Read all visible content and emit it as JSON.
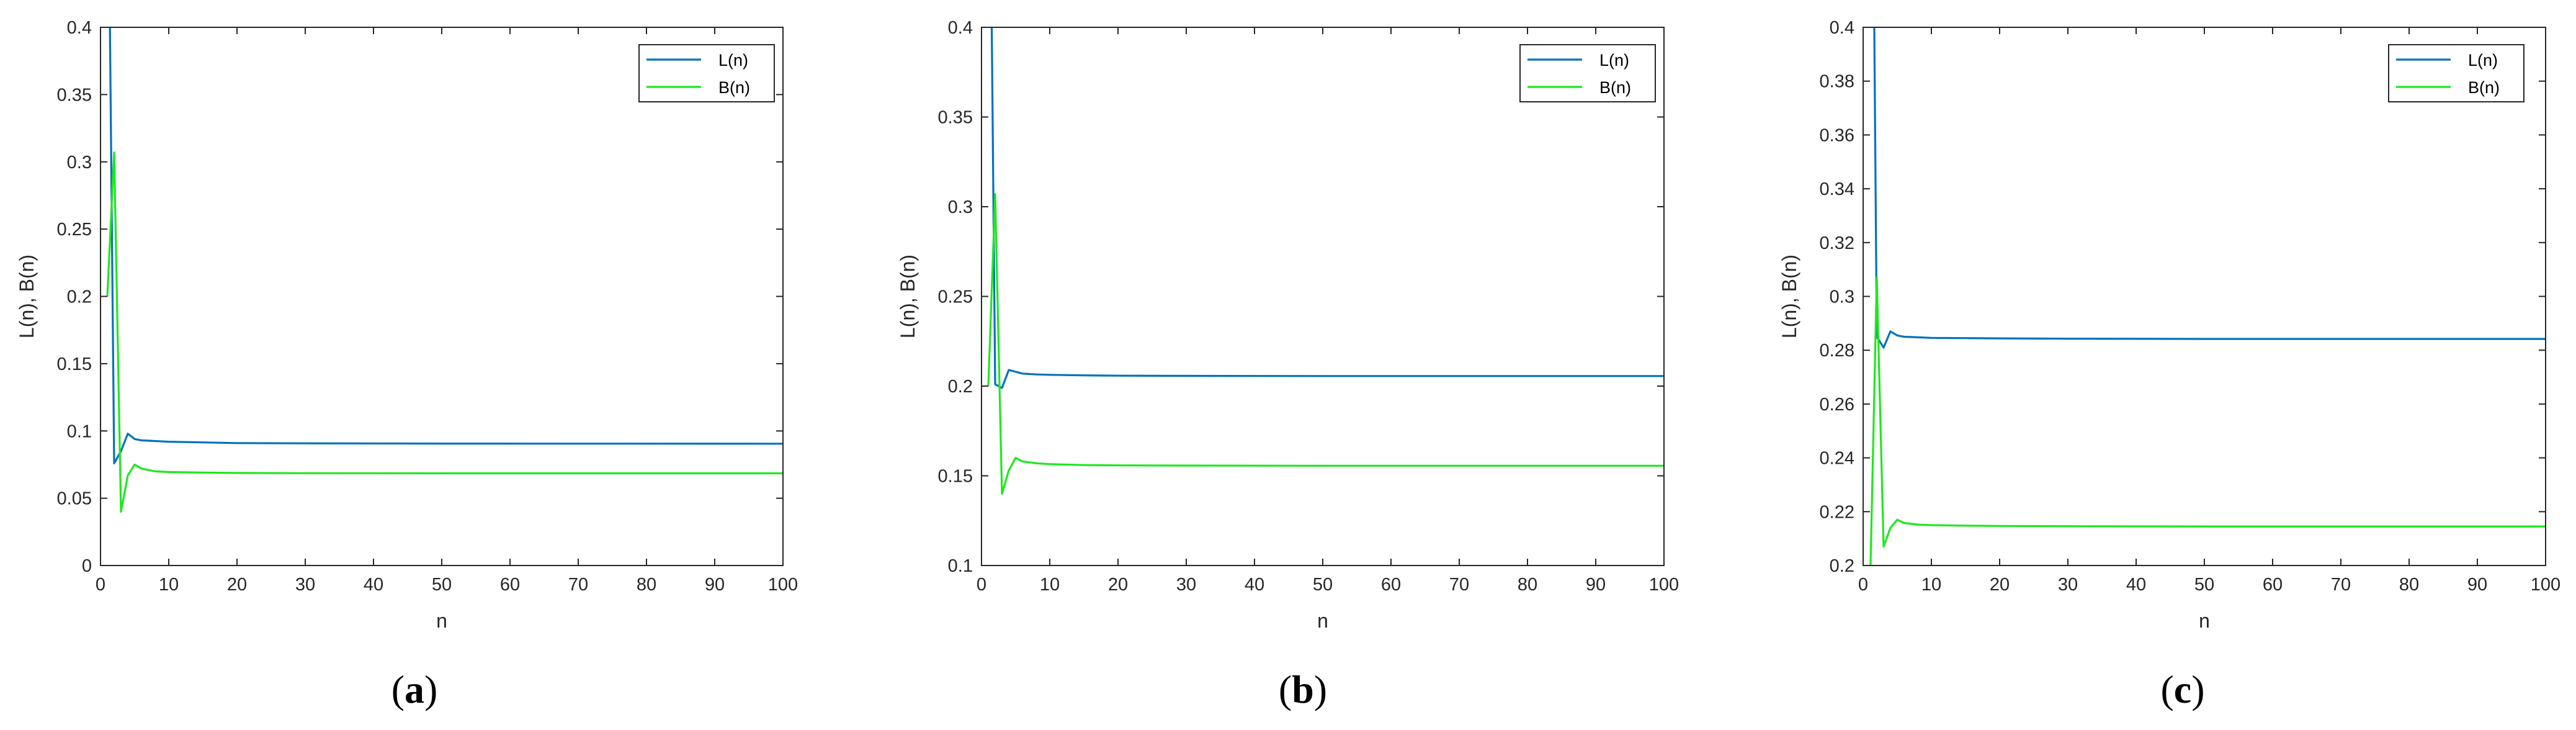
{
  "colors": {
    "L": "#0072bd",
    "B": "#1ee81e",
    "axis": "#262626"
  },
  "chart_data": [
    {
      "type": "line",
      "caption_letter": "a",
      "xlabel": "n",
      "ylabel": "L(n), B(n)",
      "xlim": [
        0,
        100
      ],
      "ylim": [
        0,
        0.4
      ],
      "xticks": [
        0,
        10,
        20,
        30,
        40,
        50,
        60,
        70,
        80,
        90,
        100
      ],
      "yticks": [
        0,
        0.05,
        0.1,
        0.15,
        0.2,
        0.25,
        0.3,
        0.35,
        0.4
      ],
      "legend_position": "top-right",
      "grid": false,
      "series": [
        {
          "name": "L(n)",
          "x": [
            1,
            2,
            3,
            4,
            5,
            6,
            8,
            10,
            15,
            20,
            30,
            50,
            100
          ],
          "y": [
            0.6,
            0.076,
            0.085,
            0.098,
            0.094,
            0.093,
            0.0925,
            0.092,
            0.0915,
            0.091,
            0.0908,
            0.0906,
            0.0905
          ]
        },
        {
          "name": "B(n)",
          "x": [
            1,
            2,
            3,
            4,
            5,
            6,
            8,
            10,
            15,
            20,
            30,
            50,
            100
          ],
          "y": [
            0.2,
            0.307,
            0.04,
            0.067,
            0.075,
            0.072,
            0.07,
            0.0695,
            0.069,
            0.0688,
            0.0686,
            0.0685,
            0.0685
          ]
        }
      ]
    },
    {
      "type": "line",
      "caption_letter": "b",
      "xlabel": "n",
      "ylabel": "L(n), B(n)",
      "xlim": [
        0,
        100
      ],
      "ylim": [
        0.1,
        0.4
      ],
      "xticks": [
        0,
        10,
        20,
        30,
        40,
        50,
        60,
        70,
        80,
        90,
        100
      ],
      "yticks": [
        0.1,
        0.15,
        0.2,
        0.25,
        0.3,
        0.35,
        0.4
      ],
      "legend_position": "top-right",
      "grid": false,
      "series": [
        {
          "name": "L(n)",
          "x": [
            1,
            2,
            3,
            4,
            5,
            6,
            8,
            10,
            15,
            20,
            30,
            50,
            100
          ],
          "y": [
            0.6,
            0.201,
            0.199,
            0.209,
            0.208,
            0.207,
            0.2065,
            0.2063,
            0.206,
            0.2058,
            0.2057,
            0.2056,
            0.2056
          ]
        },
        {
          "name": "B(n)",
          "x": [
            1,
            2,
            3,
            4,
            5,
            6,
            8,
            10,
            15,
            20,
            30,
            50,
            100
          ],
          "y": [
            0.2,
            0.307,
            0.14,
            0.153,
            0.16,
            0.158,
            0.157,
            0.1565,
            0.156,
            0.1558,
            0.1557,
            0.1556,
            0.1556
          ]
        }
      ]
    },
    {
      "type": "line",
      "caption_letter": "c",
      "xlabel": "n",
      "ylabel": "L(n), B(n)",
      "xlim": [
        0,
        100
      ],
      "ylim": [
        0.2,
        0.4
      ],
      "xticks": [
        0,
        10,
        20,
        30,
        40,
        50,
        60,
        70,
        80,
        90,
        100
      ],
      "yticks": [
        0.2,
        0.22,
        0.24,
        0.26,
        0.28,
        0.3,
        0.32,
        0.34,
        0.36,
        0.38,
        0.4
      ],
      "legend_position": "top-right",
      "grid": false,
      "series": [
        {
          "name": "L(n)",
          "x": [
            1,
            2,
            3,
            4,
            5,
            6,
            8,
            10,
            15,
            20,
            30,
            50,
            100
          ],
          "y": [
            0.6,
            0.285,
            0.281,
            0.287,
            0.2855,
            0.285,
            0.2848,
            0.2846,
            0.2845,
            0.2844,
            0.2843,
            0.2842,
            0.2842
          ]
        },
        {
          "name": "B(n)",
          "x": [
            1,
            2,
            3,
            4,
            5,
            6,
            8,
            10,
            15,
            20,
            30,
            50,
            100
          ],
          "y": [
            0.19,
            0.307,
            0.207,
            0.214,
            0.217,
            0.2158,
            0.2152,
            0.215,
            0.2148,
            0.2147,
            0.2146,
            0.2145,
            0.2145
          ]
        }
      ]
    }
  ]
}
